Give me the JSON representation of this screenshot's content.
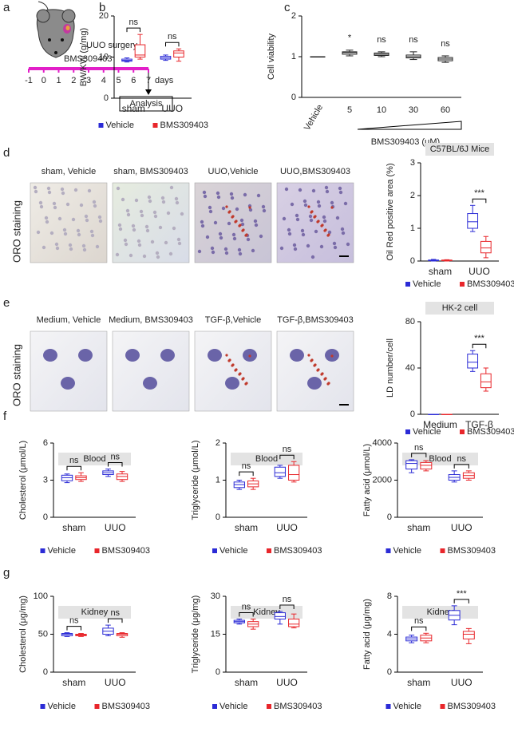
{
  "panel_labels": [
    "a",
    "b",
    "c",
    "d",
    "e",
    "f",
    "g"
  ],
  "panel_a": {
    "surgery": "UUO surgery",
    "drug": "BMS309403",
    "days": [
      -1,
      0,
      1,
      2,
      3,
      4,
      5,
      6,
      7
    ],
    "unit": "days",
    "endpoint": "Analysis"
  },
  "panel_d": {
    "stain": "ORO staining",
    "images": [
      "sham, Vehicle",
      "sham, BMS309403",
      "UUO,Vehicle",
      "UUO,BMS309403"
    ]
  },
  "panel_e": {
    "stain": "ORO staining",
    "images": [
      "Medium, Vehicle",
      "Medium, BMS309403",
      "TGF-β,Vehicle",
      "TGF-β,BMS309403"
    ]
  },
  "chart_data": [
    {
      "type": "box",
      "ylabel": "BW/KW (g/mg)",
      "ylim": [
        0,
        20
      ],
      "yticks": [
        0,
        10,
        20
      ],
      "categories": [
        "sham",
        "UUO"
      ],
      "annotations": [
        "ns",
        "ns"
      ],
      "series": [
        {
          "name": "Vehicle",
          "color": "#2b2bd6",
          "values": [
            [
              8.8,
              9,
              9.2,
              9.5,
              9.8
            ],
            [
              9.2,
              9.5,
              9.8,
              10.2,
              10.5
            ]
          ]
        },
        {
          "name": "BMS309403",
          "color": "#e8262b",
          "values": [
            [
              9.5,
              10,
              10.5,
              13,
              15.5
            ],
            [
              9,
              10,
              11,
              11.5,
              12
            ]
          ]
        }
      ]
    },
    {
      "type": "box",
      "ylabel": "Cell viability",
      "xlabel": "BMS309403 (μM)",
      "ylim": [
        0,
        2
      ],
      "yticks": [
        0,
        1,
        2
      ],
      "categories": [
        "Vehicle",
        "5",
        "10",
        "30",
        "60"
      ],
      "annotations": [
        null,
        "*",
        "ns",
        "ns",
        "ns"
      ],
      "series": [
        {
          "color": "#222222",
          "values": [
            [
              1,
              1,
              1,
              1,
              1
            ],
            [
              1.02,
              1.06,
              1.1,
              1.12,
              1.16
            ],
            [
              1,
              1.03,
              1.06,
              1.09,
              1.12
            ],
            [
              0.93,
              0.97,
              1,
              1.04,
              1.12
            ],
            [
              0.86,
              0.9,
              0.94,
              0.98,
              1.02
            ]
          ]
        }
      ]
    },
    {
      "type": "box",
      "title": "C57BL/6J Mice",
      "ylabel": "Oil Red positive area (%)",
      "ylim": [
        0,
        3
      ],
      "yticks": [
        0,
        1,
        2,
        3
      ],
      "categories": [
        "sham",
        "UUO"
      ],
      "annotations": [
        null,
        "***"
      ],
      "series": [
        {
          "name": "Vehicle",
          "color": "#2b2bd6",
          "values": [
            [
              0,
              0.01,
              0.02,
              0.03,
              0.05
            ],
            [
              0.9,
              1,
              1.2,
              1.45,
              1.7
            ]
          ]
        },
        {
          "name": "BMS309403",
          "color": "#e8262b",
          "values": [
            [
              0,
              0.01,
              0.02,
              0.03,
              0.04
            ],
            [
              0.1,
              0.25,
              0.4,
              0.6,
              0.75
            ]
          ]
        }
      ]
    },
    {
      "type": "box",
      "title": "HK-2 cell",
      "ylabel": "LD number/cell",
      "ylim": [
        0,
        80
      ],
      "yticks": [
        0,
        40,
        80
      ],
      "categories": [
        "Medium",
        "TGF-β"
      ],
      "annotations": [
        null,
        "***"
      ],
      "series": [
        {
          "name": "Vehicle",
          "color": "#2b2bd6",
          "values": [
            [
              0,
              0,
              0,
              0,
              0
            ],
            [
              37,
              40,
              45,
              52,
              55
            ]
          ]
        },
        {
          "name": "BMS309403",
          "color": "#e8262b",
          "values": [
            [
              0,
              0,
              0,
              0,
              0
            ],
            [
              20,
              23,
              28,
              35,
              40
            ]
          ]
        }
      ]
    },
    {
      "type": "box",
      "title": "Blood",
      "ylabel": "Cholesterol (μmol/L)",
      "ylim": [
        0,
        6
      ],
      "yticks": [
        0,
        3,
        6
      ],
      "categories": [
        "sham",
        "UUO"
      ],
      "annotations": [
        "ns",
        "ns"
      ],
      "series": [
        {
          "name": "Vehicle",
          "color": "#2b2bd6",
          "values": [
            [
              2.8,
              2.95,
              3.2,
              3.4,
              3.5
            ],
            [
              3.3,
              3.45,
              3.6,
              3.75,
              3.9
            ]
          ]
        },
        {
          "name": "BMS309403",
          "color": "#e8262b",
          "values": [
            [
              2.9,
              3.05,
              3.2,
              3.35,
              3.6
            ],
            [
              2.9,
              3.05,
              3.3,
              3.5,
              3.7
            ]
          ]
        }
      ]
    },
    {
      "type": "box",
      "title": "Blood",
      "ylabel": "Triglyceride (μmol/L)",
      "ylim": [
        0,
        2
      ],
      "yticks": [
        0,
        1,
        2
      ],
      "categories": [
        "sham",
        "UUO"
      ],
      "annotations": [
        "ns",
        "ns"
      ],
      "series": [
        {
          "name": "Vehicle",
          "color": "#2b2bd6",
          "values": [
            [
              0.75,
              0.8,
              0.88,
              0.95,
              1
            ],
            [
              1.05,
              1.1,
              1.2,
              1.35,
              1.4
            ]
          ]
        },
        {
          "name": "BMS309403",
          "color": "#e8262b",
          "values": [
            [
              0.75,
              0.82,
              0.9,
              0.98,
              1.05
            ],
            [
              0.95,
              1,
              1.15,
              1.4,
              1.5
            ]
          ]
        }
      ]
    },
    {
      "type": "box",
      "title": "Blood",
      "ylabel": "Fatty acid (μmol/L)",
      "ylim": [
        0,
        4000
      ],
      "yticks": [
        0,
        2000,
        4000
      ],
      "categories": [
        "sham",
        "UUO"
      ],
      "annotations": [
        "ns",
        "ns"
      ],
      "series": [
        {
          "name": "Vehicle",
          "color": "#2b2bd6",
          "values": [
            [
              2400,
              2600,
              2900,
              3050,
              3100
            ],
            [
              1900,
              2000,
              2150,
              2300,
              2500
            ]
          ]
        },
        {
          "name": "BMS309403",
          "color": "#e8262b",
          "values": [
            [
              2500,
              2600,
              2800,
              2950,
              3050
            ],
            [
              2000,
              2100,
              2250,
              2400,
              2500
            ]
          ]
        }
      ]
    },
    {
      "type": "box",
      "title": "Kidney",
      "ylabel": "Cholesterol (μg/mg)",
      "ylim": [
        0,
        100
      ],
      "yticks": [
        0,
        50,
        100
      ],
      "categories": [
        "sham",
        "UUO"
      ],
      "annotations": [
        "ns",
        "ns"
      ],
      "series": [
        {
          "name": "Vehicle",
          "color": "#2b2bd6",
          "values": [
            [
              47,
              48,
              50,
              51,
              52
            ],
            [
              48,
              50,
              54,
              58,
              62
            ]
          ]
        },
        {
          "name": "BMS309403",
          "color": "#e8262b",
          "values": [
            [
              47,
              48,
              49,
              50,
              51
            ],
            [
              46,
              48,
              50,
              51,
              52
            ]
          ]
        }
      ]
    },
    {
      "type": "box",
      "title": "Kidney",
      "ylabel": "Triglyceride (μg/mg)",
      "ylim": [
        0,
        30
      ],
      "yticks": [
        0,
        15,
        30
      ],
      "categories": [
        "sham",
        "UUO"
      ],
      "annotations": [
        "ns",
        "ns"
      ],
      "series": [
        {
          "name": "Vehicle",
          "color": "#2b2bd6",
          "values": [
            [
              19,
              19.5,
              20,
              20.5,
              21
            ],
            [
              19,
              21,
              22,
              23.5,
              24
            ]
          ]
        },
        {
          "name": "BMS309403",
          "color": "#e8262b",
          "values": [
            [
              17,
              18,
              19,
              20,
              21
            ],
            [
              17.5,
              18,
              19,
              21,
              23
            ]
          ]
        }
      ]
    },
    {
      "type": "box",
      "title": "Kidney",
      "ylabel": "Fatty acid (μg/mg)",
      "ylim": [
        0,
        8
      ],
      "yticks": [
        0,
        4,
        8
      ],
      "categories": [
        "sham",
        "UUO"
      ],
      "annotations": [
        "ns",
        "***"
      ],
      "series": [
        {
          "name": "Vehicle",
          "color": "#2b2bd6",
          "values": [
            [
              3.1,
              3.3,
              3.5,
              3.7,
              3.9
            ],
            [
              5,
              5.5,
              6,
              6.5,
              7
            ]
          ]
        },
        {
          "name": "BMS309403",
          "color": "#e8262b",
          "values": [
            [
              3.1,
              3.3,
              3.6,
              3.9,
              4.1
            ],
            [
              3,
              3.5,
              4,
              4.3,
              4.6
            ]
          ]
        }
      ]
    }
  ]
}
